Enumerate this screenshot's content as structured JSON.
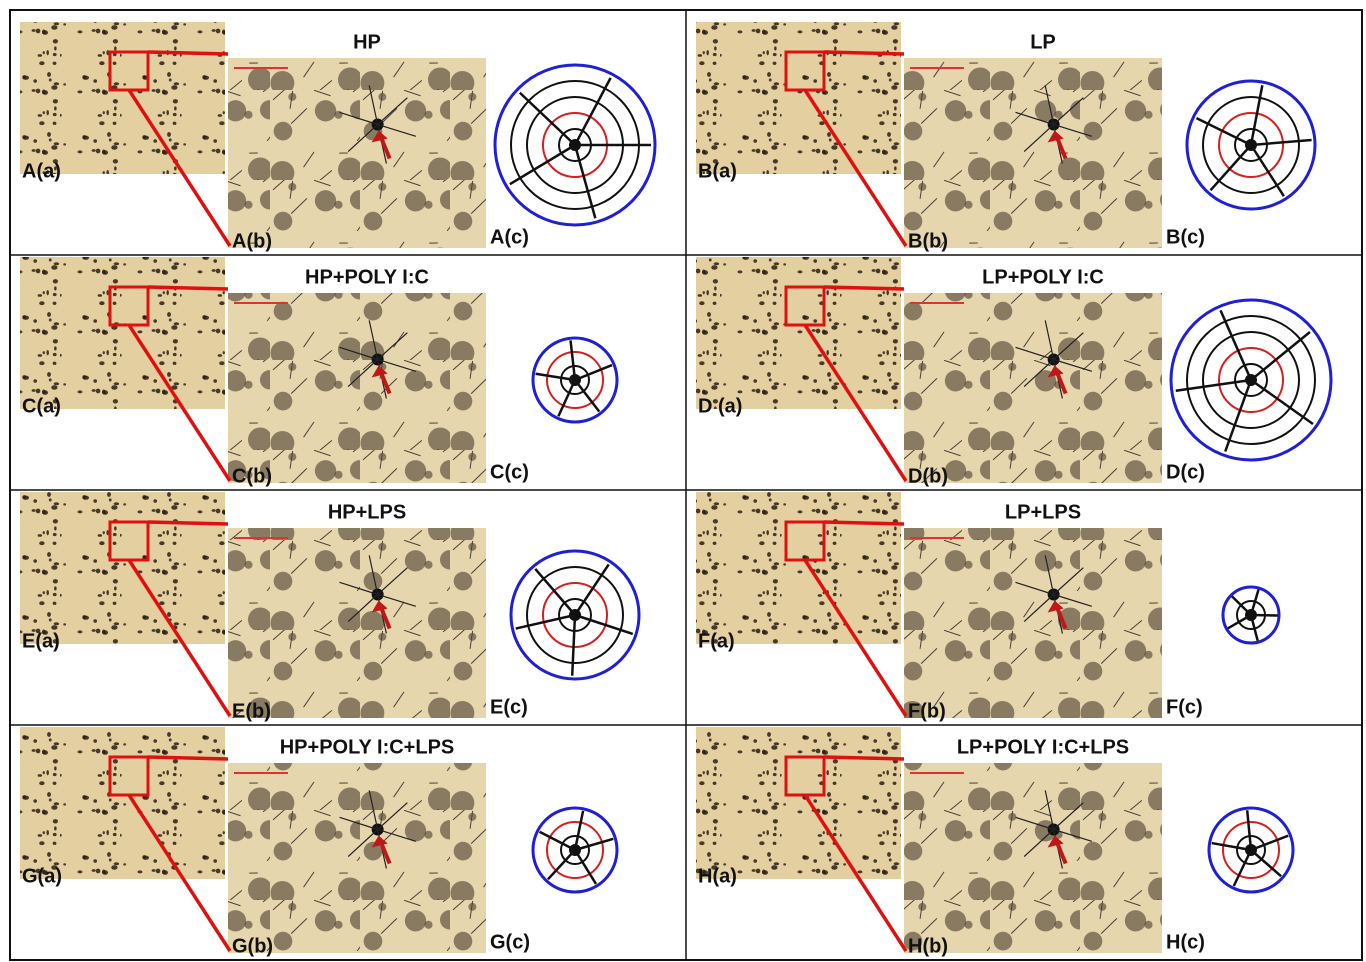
{
  "panels": [
    {
      "title": "HP",
      "labels": [
        "A(a)",
        "A(b)",
        "A(c)"
      ]
    },
    {
      "title": "LP",
      "labels": [
        "B(a)",
        "B(b)",
        "B(c)"
      ]
    },
    {
      "title": "HP+POLY I:C",
      "labels": [
        "C(a)",
        "C(b)",
        "C(c)"
      ]
    },
    {
      "title": "LP+POLY I:C",
      "labels": [
        "D (a)",
        "D(b)",
        "D(c)"
      ]
    },
    {
      "title": "HP+LPS",
      "labels": [
        "E(a)",
        "E(b)",
        "E(c)"
      ]
    },
    {
      "title": "LP+LPS",
      "labels": [
        "F(a)",
        "F(b)",
        "F(c)"
      ]
    },
    {
      "title": "HP+POLY I:C+LPS",
      "labels": [
        "G(a)",
        "G(b)",
        "G(c)"
      ]
    },
    {
      "title": "LP+POLY I:C+LPS",
      "labels": [
        "H(a)",
        "H(b)",
        "H(c)"
      ]
    }
  ]
}
